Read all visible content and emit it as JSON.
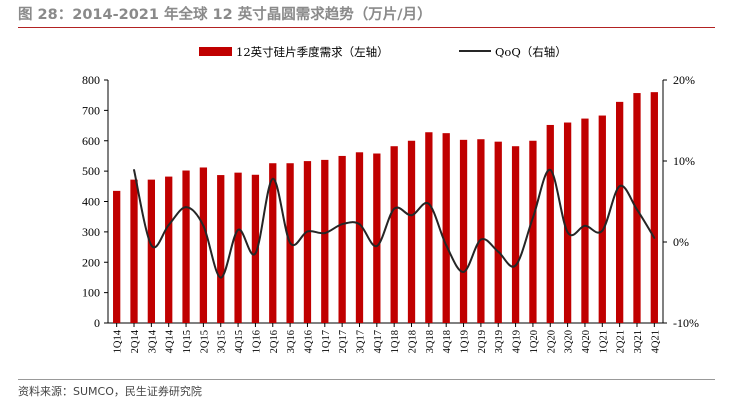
{
  "header": {
    "title": "图 28：2014-2021 年全球 12 英寸晶圆需求趋势（万片/月）"
  },
  "footer": {
    "source": "资料来源：SUMCO，民生证券研究院"
  },
  "chart_data": {
    "type": "bar",
    "title": "",
    "categories": [
      "1Q14",
      "2Q14",
      "3Q14",
      "4Q14",
      "1Q15",
      "2Q15",
      "3Q15",
      "4Q15",
      "1Q16",
      "2Q16",
      "3Q16",
      "4Q16",
      "1Q17",
      "2Q17",
      "3Q17",
      "4Q17",
      "1Q18",
      "2Q18",
      "3Q18",
      "4Q18",
      "1Q19",
      "2Q19",
      "3Q19",
      "4Q19",
      "1Q20",
      "2Q20",
      "3Q20",
      "4Q20",
      "1Q21",
      "2Q21",
      "3Q21",
      "4Q21"
    ],
    "series": [
      {
        "name": "12英寸硅片季度需求（左轴）",
        "type": "bar",
        "axis": "left",
        "color": "#c00000",
        "values": [
          435,
          472,
          472,
          482,
          502,
          512,
          487,
          495,
          488,
          526,
          526,
          533,
          537,
          550,
          562,
          558,
          582,
          600,
          628,
          625,
          603,
          605,
          597,
          582,
          600,
          652,
          660,
          673,
          683,
          728,
          757,
          760
        ]
      },
      {
        "name": "QoQ（右轴）",
        "type": "line",
        "axis": "right",
        "color": "#262626",
        "values": [
          null,
          8.9,
          -0.4,
          2.1,
          4.3,
          2.0,
          -4.4,
          1.5,
          -1.4,
          7.8,
          -0.1,
          1.3,
          1.1,
          2.2,
          2.2,
          -0.5,
          4.1,
          3.3,
          4.7,
          -0.4,
          -3.7,
          0.3,
          -1.2,
          -2.9,
          3.0,
          8.9,
          1.2,
          2.0,
          1.4,
          6.9,
          4.0,
          0.5
        ]
      }
    ],
    "y_left": {
      "lim": [
        0,
        800
      ],
      "ticks": [
        "0",
        "100",
        "200",
        "300",
        "400",
        "500",
        "600",
        "700",
        "800"
      ]
    },
    "y_right": {
      "lim": [
        -10,
        20
      ],
      "ticks": [
        "-10%",
        "0%",
        "10%",
        "20%"
      ]
    },
    "grid": false,
    "legend_position": "top-center"
  }
}
